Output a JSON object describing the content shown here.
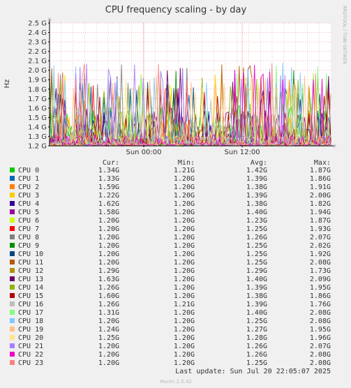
{
  "chart_data": {
    "type": "line",
    "title": "CPU frequency scaling - by day",
    "ylabel": "Hz",
    "side_label": "RRDTOOL / TOBI OETIKER",
    "ylim": [
      1.2,
      2.5
    ],
    "y_ticks": [
      "1.2 G",
      "1.3 G",
      "1.4 G",
      "1.5 G",
      "1.6 G",
      "1.7 G",
      "1.8 G",
      "1.9 G",
      "2.0 G",
      "2.1 G",
      "2.2 G",
      "2.3 G",
      "2.4 G",
      "2.5 G"
    ],
    "y_tick_values": [
      1.2,
      1.3,
      1.4,
      1.5,
      1.6,
      1.7,
      1.8,
      1.9,
      2.0,
      2.1,
      2.2,
      2.3,
      2.4,
      2.5
    ],
    "x_ticks": [
      "Sun 00:00",
      "Sun 12:00"
    ],
    "x_tick_positions": [
      0.335,
      0.685
    ],
    "grid": true,
    "legend_placement": "bottom",
    "table_headers": [
      "Cur:",
      "Min:",
      "Avg:",
      "Max:"
    ],
    "series": [
      {
        "name": "CPU 0",
        "color": "#00cc00",
        "cur": "1.34G",
        "min": "1.21G",
        "avg": "1.42G",
        "max": "1.87G"
      },
      {
        "name": "CPU 1",
        "color": "#0066b3",
        "cur": "1.33G",
        "min": "1.20G",
        "avg": "1.39G",
        "max": "1.86G"
      },
      {
        "name": "CPU 2",
        "color": "#ff8000",
        "cur": "1.59G",
        "min": "1.20G",
        "avg": "1.38G",
        "max": "1.91G"
      },
      {
        "name": "CPU 3",
        "color": "#ffcc00",
        "cur": "1.22G",
        "min": "1.20G",
        "avg": "1.39G",
        "max": "2.00G"
      },
      {
        "name": "CPU 4",
        "color": "#330099",
        "cur": "1.62G",
        "min": "1.20G",
        "avg": "1.38G",
        "max": "1.82G"
      },
      {
        "name": "CPU 5",
        "color": "#990099",
        "cur": "1.58G",
        "min": "1.20G",
        "avg": "1.40G",
        "max": "1.94G"
      },
      {
        "name": "CPU 6",
        "color": "#ccff00",
        "cur": "1.20G",
        "min": "1.20G",
        "avg": "1.23G",
        "max": "1.87G"
      },
      {
        "name": "CPU 7",
        "color": "#ff0000",
        "cur": "1.20G",
        "min": "1.20G",
        "avg": "1.25G",
        "max": "1.93G"
      },
      {
        "name": "CPU 8",
        "color": "#808080",
        "cur": "1.20G",
        "min": "1.20G",
        "avg": "1.26G",
        "max": "2.07G"
      },
      {
        "name": "CPU 9",
        "color": "#008f00",
        "cur": "1.20G",
        "min": "1.20G",
        "avg": "1.25G",
        "max": "2.02G"
      },
      {
        "name": "CPU 10",
        "color": "#00487d",
        "cur": "1.20G",
        "min": "1.20G",
        "avg": "1.25G",
        "max": "1.92G"
      },
      {
        "name": "CPU 11",
        "color": "#b35a00",
        "cur": "1.20G",
        "min": "1.20G",
        "avg": "1.25G",
        "max": "2.08G"
      },
      {
        "name": "CPU 12",
        "color": "#b38f00",
        "cur": "1.29G",
        "min": "1.20G",
        "avg": "1.29G",
        "max": "1.73G"
      },
      {
        "name": "CPU 13",
        "color": "#6b006b",
        "cur": "1.63G",
        "min": "1.20G",
        "avg": "1.40G",
        "max": "2.09G"
      },
      {
        "name": "CPU 14",
        "color": "#8fb300",
        "cur": "1.26G",
        "min": "1.20G",
        "avg": "1.39G",
        "max": "1.95G"
      },
      {
        "name": "CPU 15",
        "color": "#b30000",
        "cur": "1.60G",
        "min": "1.20G",
        "avg": "1.38G",
        "max": "1.86G"
      },
      {
        "name": "CPU 16",
        "color": "#bebebe",
        "cur": "1.26G",
        "min": "1.21G",
        "avg": "1.39G",
        "max": "1.76G"
      },
      {
        "name": "CPU 17",
        "color": "#80ff80",
        "cur": "1.31G",
        "min": "1.20G",
        "avg": "1.40G",
        "max": "2.08G"
      },
      {
        "name": "CPU 18",
        "color": "#80c9ff",
        "cur": "1.20G",
        "min": "1.20G",
        "avg": "1.25G",
        "max": "2.08G"
      },
      {
        "name": "CPU 19",
        "color": "#ffc080",
        "cur": "1.24G",
        "min": "1.20G",
        "avg": "1.27G",
        "max": "1.95G"
      },
      {
        "name": "CPU 20",
        "color": "#ffe680",
        "cur": "1.25G",
        "min": "1.20G",
        "avg": "1.28G",
        "max": "1.96G"
      },
      {
        "name": "CPU 21",
        "color": "#aa80ff",
        "cur": "1.20G",
        "min": "1.20G",
        "avg": "1.26G",
        "max": "2.07G"
      },
      {
        "name": "CPU 22",
        "color": "#ee00cc",
        "cur": "1.20G",
        "min": "1.20G",
        "avg": "1.26G",
        "max": "2.08G"
      },
      {
        "name": "CPU 23",
        "color": "#ff8080",
        "cur": "1.20G",
        "min": "1.20G",
        "avg": "1.25G",
        "max": "2.08G"
      }
    ]
  },
  "footer": {
    "last_update": "Last update: Sun Jul 20 22:05:07 2025",
    "version": "Munin 2.0.42"
  }
}
